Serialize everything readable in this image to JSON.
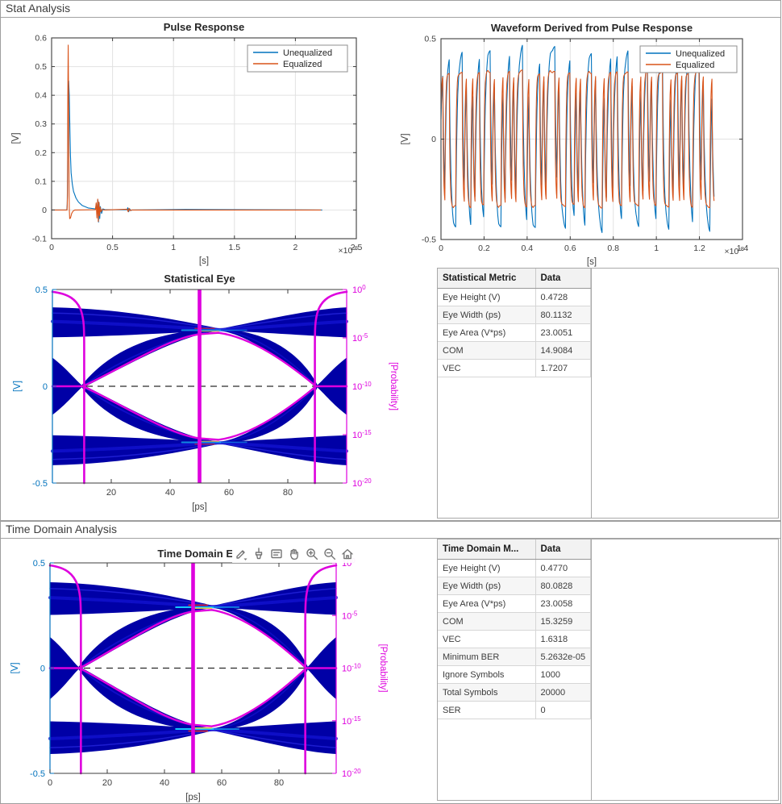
{
  "panels": {
    "stat": {
      "title": "Stat Analysis"
    },
    "time": {
      "title": "Time Domain Analysis"
    }
  },
  "colors": {
    "unequalized": "#0072BD",
    "equalized": "#D95319",
    "eye_density": "#0000A6",
    "bathtub_magenta": "#DE00DE",
    "axis_dark": "#3f3f3f",
    "grid": "#e2e2e2"
  },
  "toolbar": {
    "icons": [
      "export-icon",
      "brush-icon",
      "datatips-icon",
      "pan-icon",
      "zoom-in-icon",
      "zoom-out-icon",
      "home-icon"
    ]
  },
  "tables": {
    "stat": {
      "headers": [
        "Statistical Metric",
        "Data"
      ],
      "rows": [
        [
          "Eye Height (V)",
          "0.4728"
        ],
        [
          "Eye Width (ps)",
          "80.1132"
        ],
        [
          "Eye Area (V*ps)",
          "23.0051"
        ],
        [
          "COM",
          "14.9084"
        ],
        [
          "VEC",
          "1.7207"
        ]
      ]
    },
    "time": {
      "headers": [
        "Time Domain M...",
        "Data"
      ],
      "rows": [
        [
          "Eye Height (V)",
          "0.4770"
        ],
        [
          "Eye Width (ps)",
          "80.0828"
        ],
        [
          "Eye Area (V*ps)",
          "23.0058"
        ],
        [
          "COM",
          "15.3259"
        ],
        [
          "VEC",
          "1.6318"
        ],
        [
          "Minimum BER",
          "5.2632e-05"
        ],
        [
          "Ignore Symbols",
          "1000"
        ],
        [
          "Total Symbols",
          "20000"
        ],
        [
          "SER",
          "0"
        ]
      ]
    }
  },
  "chart_data": {
    "pulse": {
      "type": "line",
      "title": "Pulse Response",
      "xlabel": "[s]",
      "ylabel": "[V]",
      "x_offset_base": "×10",
      "x_offset_exp": "-8",
      "xlim": [
        0,
        2.5
      ],
      "ylim": [
        -0.1,
        0.6
      ],
      "xticks": [
        0,
        0.5,
        1,
        1.5,
        2,
        2.5
      ],
      "xtick_labels": [
        "0",
        "0.5",
        "1",
        "1.5",
        "2",
        "2.5"
      ],
      "yticks": [
        -0.1,
        0,
        0.1,
        0.2,
        0.3,
        0.4,
        0.5,
        0.6
      ],
      "ytick_labels": [
        "-0.1",
        "0",
        "0.1",
        "0.2",
        "0.3",
        "0.4",
        "0.5",
        "0.6"
      ],
      "legend": [
        "Unequalized",
        "Equalized"
      ],
      "series": {
        "unequalized": [
          [
            0,
            0
          ],
          [
            0.125,
            0
          ],
          [
            0.128,
            0.02
          ],
          [
            0.135,
            0.3
          ],
          [
            0.14,
            0.45
          ],
          [
            0.145,
            0.4
          ],
          [
            0.15,
            0.28
          ],
          [
            0.155,
            0.19
          ],
          [
            0.16,
            0.13
          ],
          [
            0.17,
            0.09
          ],
          [
            0.18,
            0.065
          ],
          [
            0.2,
            0.042
          ],
          [
            0.22,
            0.028
          ],
          [
            0.25,
            0.016
          ],
          [
            0.3,
            0.007
          ],
          [
            0.36,
            0.004
          ],
          [
            0.368,
            0.02
          ],
          [
            0.374,
            -0.012
          ],
          [
            0.38,
            0.035
          ],
          [
            0.385,
            -0.042
          ],
          [
            0.39,
            0.025
          ],
          [
            0.395,
            -0.03
          ],
          [
            0.4,
            0.012
          ],
          [
            0.41,
            -0.012
          ],
          [
            0.42,
            0.004
          ],
          [
            0.44,
            0.001
          ],
          [
            0.62,
            0.001
          ],
          [
            0.625,
            0.008
          ],
          [
            0.632,
            -0.006
          ],
          [
            0.64,
            0.004
          ],
          [
            0.65,
            -0.002
          ],
          [
            0.66,
            0
          ],
          [
            1.1,
            0.002
          ],
          [
            2.2,
            0
          ],
          [
            2.22,
            0
          ]
        ],
        "equalized": [
          [
            0,
            0
          ],
          [
            0.127,
            0
          ],
          [
            0.13,
            0.05
          ],
          [
            0.133,
            0.4
          ],
          [
            0.136,
            0.575
          ],
          [
            0.139,
            0.42
          ],
          [
            0.142,
            0.15
          ],
          [
            0.145,
            0.01
          ],
          [
            0.148,
            -0.03
          ],
          [
            0.155,
            -0.028
          ],
          [
            0.165,
            -0.012
          ],
          [
            0.175,
            -0.004
          ],
          [
            0.19,
            0
          ],
          [
            0.36,
            0.001
          ],
          [
            0.366,
            0.025
          ],
          [
            0.372,
            -0.028
          ],
          [
            0.378,
            0.038
          ],
          [
            0.383,
            -0.04
          ],
          [
            0.388,
            0.028
          ],
          [
            0.393,
            -0.02
          ],
          [
            0.398,
            0.01
          ],
          [
            0.405,
            -0.006
          ],
          [
            0.415,
            0.002
          ],
          [
            0.43,
            0
          ],
          [
            0.62,
            0.003
          ],
          [
            0.628,
            -0.006
          ],
          [
            0.635,
            0.006
          ],
          [
            0.645,
            -0.002
          ],
          [
            0.655,
            0
          ],
          [
            2.2,
            0
          ],
          [
            2.21,
            0
          ]
        ]
      }
    },
    "waveform": {
      "type": "line",
      "title": "Waveform Derived from Pulse Response",
      "xlabel": "[s]",
      "ylabel": "[V]",
      "x_offset_base": "×10",
      "x_offset_exp": "-8",
      "xlim": [
        0,
        1.4
      ],
      "ylim": [
        -0.5,
        0.5
      ],
      "xticks": [
        0,
        0.2,
        0.4,
        0.6,
        0.8,
        1,
        1.2,
        1.4
      ],
      "xtick_labels": [
        "0",
        "0.2",
        "0.4",
        "0.6",
        "0.8",
        "1",
        "1.2",
        "1.4"
      ],
      "yticks": [
        -0.5,
        0,
        0.5
      ],
      "ytick_labels": [
        "-0.5",
        "0",
        "0.5"
      ],
      "legend": [
        "Unequalized",
        "Equalized"
      ],
      "symbol_time_s": 1e-10,
      "pattern": "1011000111010010110011101000101101011100100011010111101000110010100111010001011011001110100010110100111000101101011001110100010",
      "levels_v": {
        "unequalized_peak": 0.48,
        "equalized_flat": 0.34
      }
    },
    "stat_eye": {
      "type": "eye",
      "title": "Statistical Eye",
      "xlabel": "[ps]",
      "ylabel_left": "[V]",
      "ylabel_right": "[Probability]",
      "xlim": [
        0,
        100
      ],
      "ylim_left": [
        -0.5,
        0.5
      ],
      "xticks": [
        20,
        40,
        60,
        80
      ],
      "xtick_labels": [
        "20",
        "40",
        "60",
        "80"
      ],
      "ytick_labels_left": [
        "-0.5",
        "0",
        "0.5"
      ],
      "yticks_right_base": "10",
      "yticks_right_exps": [
        "0",
        "-5",
        "-10",
        "-15",
        "-20"
      ],
      "crossing_times_ps": [
        10,
        90
      ],
      "sampling_time_ps": 50,
      "signal_levels_v": [
        0.33,
        -0.33
      ],
      "eye_height_v": 0.4728,
      "eye_width_ps": 80.1132
    },
    "time_eye": {
      "type": "eye",
      "title": "Time Domain E",
      "xlabel": "[ps]",
      "ylabel_left": "[V]",
      "ylabel_right": "[Probability]",
      "xlim": [
        0,
        100
      ],
      "ylim_left": [
        -0.5,
        0.5
      ],
      "xticks": [
        0,
        20,
        40,
        60,
        80
      ],
      "xtick_labels": [
        "0",
        "20",
        "40",
        "60",
        "80"
      ],
      "ytick_labels_left": [
        "-0.5",
        "0",
        "0.5"
      ],
      "yticks_right_base": "10",
      "yticks_right_exps": [
        "0",
        "-5",
        "-10",
        "-15",
        "-20"
      ],
      "crossing_times_ps": [
        10,
        90
      ],
      "sampling_time_ps": 50,
      "signal_levels_v": [
        0.33,
        -0.33
      ],
      "eye_height_v": 0.477,
      "eye_width_ps": 80.0828
    }
  }
}
